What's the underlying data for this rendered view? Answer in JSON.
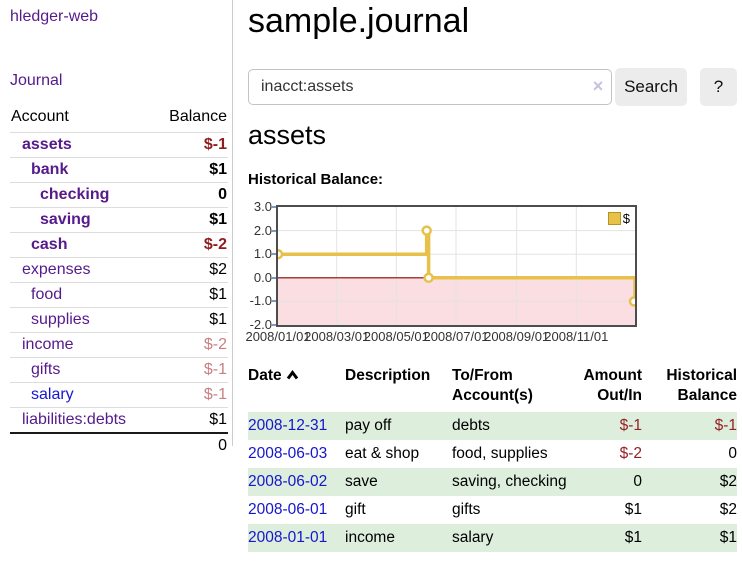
{
  "app": {
    "brand": "hledger-web",
    "nav": {
      "journal": "Journal"
    }
  },
  "colors": {
    "link_visited_purple": "#551a8b",
    "link_blue": "#1717d1",
    "negative_bold": "#8f1d1d",
    "negative_light": "#c98080",
    "row_green": "#ddeedd",
    "chart_line_gold": "#e8c14a",
    "chart_negative_fill": "#fbdee1",
    "zero_line_red": "#8b0000",
    "button_bg": "#ececec"
  },
  "sidebar": {
    "header": {
      "account": "Account",
      "balance": "Balance"
    },
    "accounts": [
      {
        "name": "assets",
        "balance": "$-1",
        "indent": 0,
        "bold": true,
        "neg": "dark",
        "link": "purple"
      },
      {
        "name": "bank",
        "balance": "$1",
        "indent": 1,
        "bold": true,
        "neg": "none",
        "link": "purple"
      },
      {
        "name": "checking",
        "balance": "0",
        "indent": 2,
        "bold": true,
        "neg": "none",
        "link": "purple"
      },
      {
        "name": "saving",
        "balance": "$1",
        "indent": 2,
        "bold": true,
        "neg": "none",
        "link": "purple"
      },
      {
        "name": "cash",
        "balance": "$-2",
        "indent": 1,
        "bold": true,
        "neg": "dark",
        "link": "purple"
      },
      {
        "name": "expenses",
        "balance": "$2",
        "indent": 0,
        "bold": false,
        "neg": "none",
        "link": "purple"
      },
      {
        "name": "food",
        "balance": "$1",
        "indent": 1,
        "bold": false,
        "neg": "none",
        "link": "purple"
      },
      {
        "name": "supplies",
        "balance": "$1",
        "indent": 1,
        "bold": false,
        "neg": "none",
        "link": "purple"
      },
      {
        "name": "income",
        "balance": "$-2",
        "indent": 0,
        "bold": false,
        "neg": "light",
        "link": "purple"
      },
      {
        "name": "gifts",
        "balance": "$-1",
        "indent": 1,
        "bold": false,
        "neg": "light",
        "link": "purple"
      },
      {
        "name": "salary",
        "balance": "$-1",
        "indent": 1,
        "bold": false,
        "neg": "light",
        "link": "blue"
      },
      {
        "name": "liabilities:debts",
        "balance": "$1",
        "indent": 0,
        "bold": false,
        "neg": "none",
        "link": "purple"
      }
    ],
    "total": "0"
  },
  "main": {
    "title": "sample.journal",
    "search": {
      "value": "inacct:assets",
      "clear_icon": "×",
      "button_label": "Search",
      "help_label": "?"
    },
    "account_heading": "assets",
    "chart_caption": "Historical Balance:"
  },
  "chart_data": {
    "type": "line",
    "title": "Historical Balance of assets",
    "step": true,
    "legend": {
      "label": "$",
      "position": "top-right"
    },
    "ylim": [
      -2,
      3
    ],
    "x_range_days": 365,
    "y_ticks": [
      {
        "label": "3.0",
        "value": 3
      },
      {
        "label": "2.0",
        "value": 2
      },
      {
        "label": "1.0",
        "value": 1
      },
      {
        "label": "0.0",
        "value": 0
      },
      {
        "label": "-1.0",
        "value": -1
      },
      {
        "label": "-2.0",
        "value": -2
      }
    ],
    "x_ticks": [
      {
        "label": "2008/01/01",
        "day": 0
      },
      {
        "label": "2008/03/01",
        "day": 60
      },
      {
        "label": "2008/05/01",
        "day": 121
      },
      {
        "label": "2008/07/01",
        "day": 182
      },
      {
        "label": "2008/09/01",
        "day": 244
      },
      {
        "label": "2008/11/01",
        "day": 305
      }
    ],
    "series": [
      {
        "name": "$",
        "points": [
          {
            "date": "2008-01-01",
            "day": 0,
            "value": 1
          },
          {
            "date": "2008-06-01",
            "day": 152,
            "value": 2
          },
          {
            "date": "2008-06-03",
            "day": 154,
            "value": 0
          },
          {
            "date": "2008-12-31",
            "day": 365,
            "value": -1
          }
        ]
      }
    ],
    "grid": true
  },
  "table": {
    "columns": [
      {
        "label": "Date",
        "sorted": "asc"
      },
      {
        "label": "Description"
      },
      {
        "label": "To/From Account(s)"
      },
      {
        "label": "Amount Out/In"
      },
      {
        "label": "Historical Balance"
      }
    ],
    "rows": [
      {
        "date": "2008-12-31",
        "description": "pay off",
        "accounts": "debts",
        "amount": "$-1",
        "amount_neg": true,
        "balance": "$-1",
        "balance_neg": true,
        "shaded": true
      },
      {
        "date": "2008-06-03",
        "description": "eat & shop",
        "accounts": "food, supplies",
        "amount": "$-2",
        "amount_neg": true,
        "balance": "0",
        "balance_neg": false,
        "shaded": false
      },
      {
        "date": "2008-06-02",
        "description": "save",
        "accounts": "saving, checking",
        "amount": "0",
        "amount_neg": false,
        "balance": "$2",
        "balance_neg": false,
        "shaded": true
      },
      {
        "date": "2008-06-01",
        "description": "gift",
        "accounts": "gifts",
        "amount": "$1",
        "amount_neg": false,
        "balance": "$2",
        "balance_neg": false,
        "shaded": false
      },
      {
        "date": "2008-01-01",
        "description": "income",
        "accounts": "salary",
        "amount": "$1",
        "amount_neg": false,
        "balance": "$1",
        "balance_neg": false,
        "shaded": true
      }
    ]
  }
}
